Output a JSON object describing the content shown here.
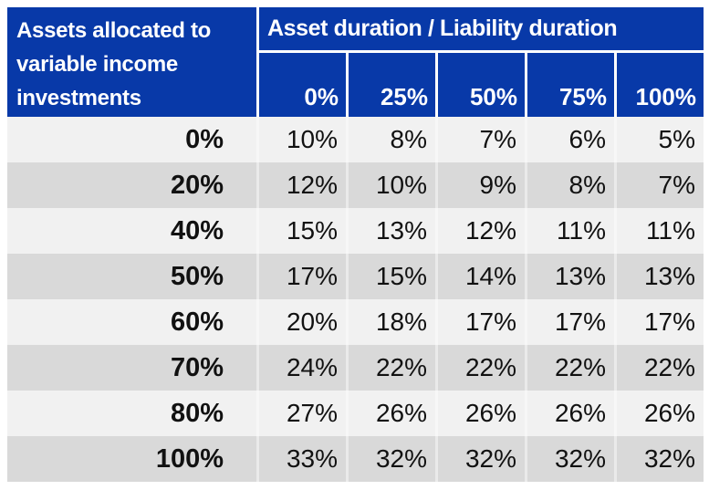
{
  "table": {
    "corner_title_lines": [
      "Assets allocated to",
      "variable income",
      "investments"
    ],
    "group_header": "Asset duration / Liability duration",
    "column_headers": [
      "0%",
      "25%",
      "50%",
      "75%",
      "100%"
    ],
    "rows": [
      {
        "label": "0%",
        "values": [
          "10%",
          "8%",
          "7%",
          "6%",
          "5%"
        ]
      },
      {
        "label": "20%",
        "values": [
          "12%",
          "10%",
          "9%",
          "8%",
          "7%"
        ]
      },
      {
        "label": "40%",
        "values": [
          "15%",
          "13%",
          "12%",
          "11%",
          "11%"
        ]
      },
      {
        "label": "50%",
        "values": [
          "17%",
          "15%",
          "14%",
          "13%",
          "13%"
        ]
      },
      {
        "label": "60%",
        "values": [
          "20%",
          "18%",
          "17%",
          "17%",
          "17%"
        ]
      },
      {
        "label": "70%",
        "values": [
          "24%",
          "22%",
          "22%",
          "22%",
          "22%"
        ]
      },
      {
        "label": "80%",
        "values": [
          "27%",
          "26%",
          "26%",
          "26%",
          "26%"
        ]
      },
      {
        "label": "100%",
        "values": [
          "33%",
          "32%",
          "32%",
          "32%",
          "32%"
        ]
      }
    ],
    "colors": {
      "header_background": "#0839A8",
      "header_text": "#FFFFFF",
      "row_light": "#F1F1F1",
      "row_dark": "#D9D9D9",
      "body_text": "#111111"
    }
  },
  "chart_data": {
    "type": "table",
    "title": "Asset duration / Liability duration",
    "row_header": "Assets allocated to variable income investments",
    "columns": [
      "0%",
      "25%",
      "50%",
      "75%",
      "100%"
    ],
    "rows": [
      "0%",
      "20%",
      "40%",
      "50%",
      "60%",
      "70%",
      "80%",
      "100%"
    ],
    "values_percent": [
      [
        10,
        8,
        7,
        6,
        5
      ],
      [
        12,
        10,
        9,
        8,
        7
      ],
      [
        15,
        13,
        12,
        11,
        11
      ],
      [
        17,
        15,
        14,
        13,
        13
      ],
      [
        20,
        18,
        17,
        17,
        17
      ],
      [
        24,
        22,
        22,
        22,
        22
      ],
      [
        27,
        26,
        26,
        26,
        26
      ],
      [
        33,
        32,
        32,
        32,
        32
      ]
    ]
  }
}
